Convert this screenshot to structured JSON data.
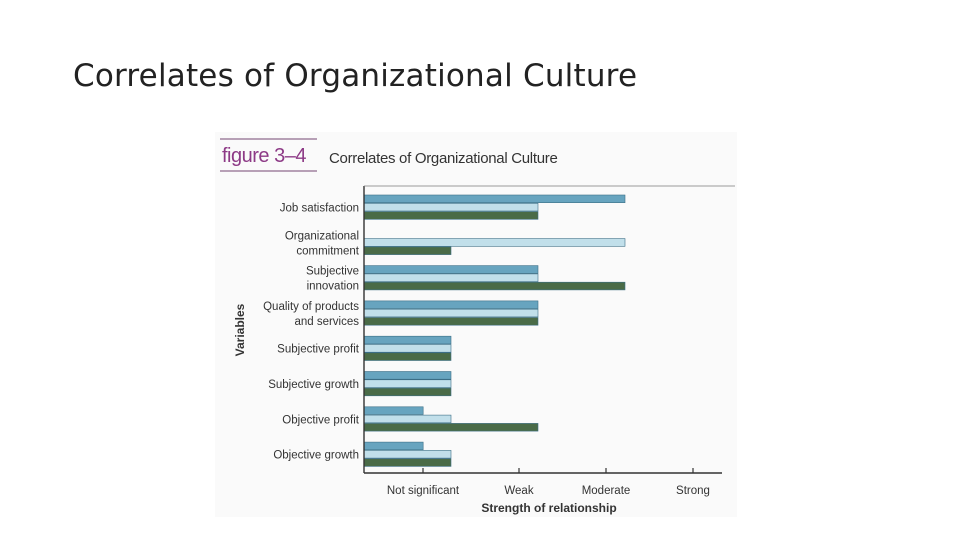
{
  "slide": {
    "title": "Correlates of Organizational Culture"
  },
  "figure": {
    "label": "figure 3–4",
    "title": "Correlates of Organizational Culture"
  },
  "colors": {
    "series1": "#67a4bf",
    "series2": "#c1dfea",
    "series3": "#4a6b47",
    "axis": "#333333",
    "label_accent": "#8d3a86"
  },
  "chart_data": {
    "type": "bar",
    "orientation": "horizontal",
    "title": "Correlates of Organizational Culture",
    "xlabel": "Strength of relationship",
    "ylabel": "Variables",
    "x_ticks": [
      "Not significant",
      "Weak",
      "Moderate",
      "Strong"
    ],
    "xlim": [
      0,
      3
    ],
    "categories": [
      [
        "Job satisfaction"
      ],
      [
        "Organizational",
        "commitment"
      ],
      [
        "Subjective",
        "innovation"
      ],
      [
        "Quality of products",
        "and services"
      ],
      [
        "Subjective profit"
      ],
      [
        "Subjective growth"
      ],
      [
        "Objective profit"
      ],
      [
        "Objective growth"
      ]
    ],
    "series": [
      {
        "values": [
          3,
          null,
          2,
          2,
          1,
          1,
          0,
          0
        ]
      },
      {
        "values": [
          2,
          3,
          2,
          2,
          1,
          1,
          1,
          1
        ]
      },
      {
        "values": [
          2,
          1,
          3,
          2,
          1,
          1,
          2,
          1
        ]
      }
    ],
    "grid": false,
    "legend": "none"
  }
}
